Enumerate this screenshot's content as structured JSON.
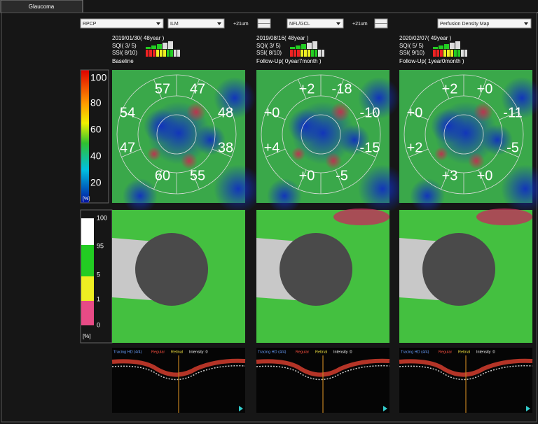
{
  "tab": "Glaucoma",
  "controls": {
    "slab": "RPCP",
    "upper_layer": "ILM",
    "upper_offset": "+21um",
    "lower_layer": "NFL/GCL",
    "lower_offset": "+21um",
    "map": "Perfusion Density Map"
  },
  "density_scale": {
    "ticks": [
      "100",
      "80",
      "60",
      "40",
      "20"
    ],
    "unit": "[%]"
  },
  "deviation_scale": {
    "ticks": [
      "100",
      "95",
      "5",
      "1",
      "0"
    ],
    "unit": "[%]"
  },
  "scans": [
    {
      "date": "2019/01/30( 48year )",
      "sqi": "SQI( 3/ 5)",
      "ssi": "SSI( 8/10)",
      "label": "Baseline",
      "sectors": [
        "57",
        "47",
        "54",
        "48",
        "47",
        "38",
        "60",
        "55"
      ],
      "bscan": {
        "mode": "Tracing HD (4/4)",
        "type": "Regular",
        "layer": "Retinal",
        "intensity": "Intensity :0"
      }
    },
    {
      "date": "2019/08/16( 48year )",
      "sqi": "SQI( 3/ 5)",
      "ssi": "SSI( 8/10)",
      "label": "Follow-Up( 0year7month )",
      "sectors": [
        "+2",
        "-18",
        "+0",
        "-10",
        "+4",
        "-15",
        "+0",
        "-5"
      ],
      "bscan": {
        "mode": "Tracing HD (4/4)",
        "type": "Regular",
        "layer": "Retinal",
        "intensity": "Intensity :0"
      }
    },
    {
      "date": "2020/02/07( 49year )",
      "sqi": "SQI( 5/ 5)",
      "ssi": "SSI( 9/10)",
      "label": "Follow-Up( 1year0month )",
      "sectors": [
        "+2",
        "+0",
        "+0",
        "-11",
        "+2",
        "-5",
        "+3",
        "+0"
      ],
      "bscan": {
        "mode": "Tracing HD (4/4)",
        "type": "Regular",
        "layer": "Retinal",
        "intensity": "Intensity :0"
      }
    }
  ]
}
